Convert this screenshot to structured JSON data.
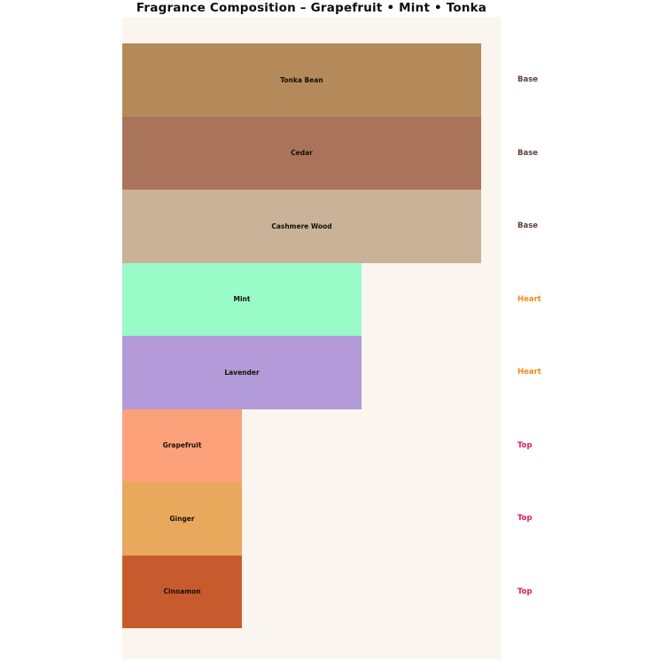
{
  "title": "Fragrance Composition – Grapefruit • Mint • Tonka",
  "colors": {
    "page_bg": "#ffffff",
    "plot_bg": "#faf5ee",
    "bar_label_text": "#171006",
    "title_text": "#0d0d0d"
  },
  "chart_data": {
    "type": "bar",
    "orientation": "horizontal",
    "title": "Fragrance Composition – Grapefruit • Mint • Tonka",
    "xlabel": "",
    "ylabel": "",
    "axes_visible": false,
    "grid": false,
    "legend": "none",
    "categories": [
      "Tonka Bean",
      "Cedar",
      "Cashmere Wood",
      "Mint",
      "Lavender",
      "Grapefruit",
      "Ginger",
      "Cinnamon"
    ],
    "values": [
      3,
      3,
      3,
      2,
      2,
      1,
      1,
      1
    ],
    "value_note": "relative bar widths estimated from pixels (Top=1, Heart=2, Base=3); no numeric axis shown",
    "tiers": [
      "Base",
      "Base",
      "Base",
      "Heart",
      "Heart",
      "Top",
      "Top",
      "Top"
    ],
    "tier_colors": {
      "Base": "#5d4037",
      "Heart": "#ef8c1d",
      "Top": "#d81b60"
    },
    "rows": [
      {
        "label": "Tonka Bean",
        "tier": "Base",
        "value": 3,
        "color": "#b48a5a"
      },
      {
        "label": "Cedar",
        "tier": "Base",
        "value": 3,
        "color": "#a9745a"
      },
      {
        "label": "Cashmere Wood",
        "tier": "Base",
        "value": 3,
        "color": "#c9b298"
      },
      {
        "label": "Mint",
        "tier": "Heart",
        "value": 2,
        "color": "#98fbc8"
      },
      {
        "label": "Lavender",
        "tier": "Heart",
        "value": 2,
        "color": "#b29bd8"
      },
      {
        "label": "Grapefruit",
        "tier": "Top",
        "value": 1,
        "color": "#fda17b"
      },
      {
        "label": "Ginger",
        "tier": "Top",
        "value": 1,
        "color": "#e8a95c"
      },
      {
        "label": "Cinnamon",
        "tier": "Top",
        "value": 1,
        "color": "#c85b2e"
      }
    ]
  }
}
